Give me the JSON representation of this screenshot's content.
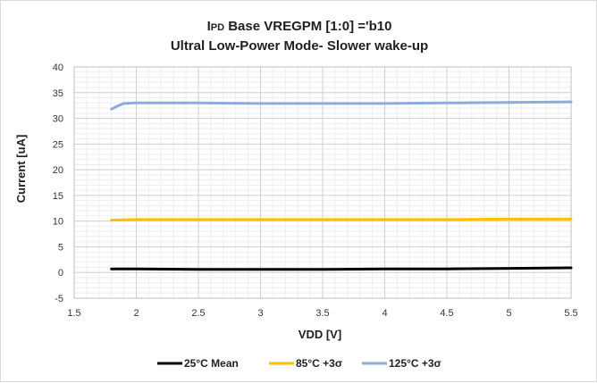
{
  "chart_data": {
    "type": "line",
    "title_prefix": "I",
    "title_sub": "PD",
    "title_line1_rest": " Base VREGPM [1:0] ='b10",
    "title_line2": "Ultral Low-Power Mode- Slower wake-up",
    "xlabel": "VDD [V]",
    "ylabel": "Current [uA]",
    "xlim": [
      1.5,
      5.5
    ],
    "ylim": [
      -5,
      40
    ],
    "xticks": [
      1.5,
      2,
      2.5,
      3,
      3.5,
      4,
      4.5,
      5,
      5.5
    ],
    "xtick_labels": [
      "1.5",
      "2",
      "2.5",
      "3",
      "3.5",
      "4",
      "4.5",
      "5",
      "5.5"
    ],
    "yticks": [
      -5,
      0,
      5,
      10,
      15,
      20,
      25,
      30,
      35,
      40
    ],
    "ytick_labels": [
      "-5",
      "0",
      "5",
      "10",
      "15",
      "20",
      "25",
      "30",
      "35",
      "40"
    ],
    "grid": true,
    "legend_position": "bottom",
    "series": [
      {
        "name": "25°C Mean",
        "color": "#000000",
        "x": [
          1.8,
          2.0,
          2.5,
          3.0,
          3.5,
          4.0,
          4.5,
          5.0,
          5.5
        ],
        "y": [
          0.7,
          0.7,
          0.6,
          0.6,
          0.6,
          0.7,
          0.7,
          0.8,
          0.9
        ]
      },
      {
        "name": "85°C +3σ",
        "color": "#ffc000",
        "x": [
          1.8,
          2.0,
          2.5,
          3.0,
          3.5,
          4.0,
          4.5,
          5.0,
          5.5
        ],
        "y": [
          10.2,
          10.3,
          10.3,
          10.3,
          10.3,
          10.3,
          10.3,
          10.4,
          10.4
        ]
      },
      {
        "name": "125°C +3σ",
        "color": "#8faadc",
        "x": [
          1.8,
          1.85,
          1.9,
          2.0,
          2.5,
          3.0,
          3.5,
          4.0,
          4.5,
          5.0,
          5.5
        ],
        "y": [
          31.8,
          32.4,
          32.9,
          33.0,
          33.0,
          32.9,
          32.9,
          32.9,
          33.0,
          33.1,
          33.2
        ]
      }
    ]
  }
}
